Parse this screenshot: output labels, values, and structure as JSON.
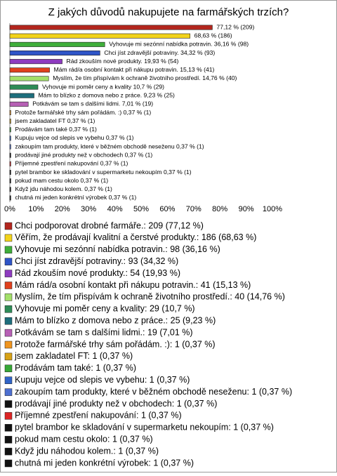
{
  "chart_data": {
    "type": "bar",
    "orientation": "horizontal",
    "title": "Z jakých důvodů nakupujete na farmářských trzích?",
    "values": [
      77.12,
      68.63,
      36.16,
      34.32,
      19.93,
      15.13,
      14.76,
      10.7,
      9.23,
      7.01,
      0.37,
      0.37,
      0.37,
      0.37,
      0.37,
      0.37,
      0.37,
      0.37,
      0.37,
      0.37,
      0.37
    ],
    "value_labels": [
      "77,12 % (209)",
      "68,63 % (186)",
      "Vyhovuje mi sezónní nabídka potravin. 36,16 % (98)",
      "Chci jíst zdravější potraviny. 34,32 % (93)",
      "Rád zkouším nové produkty. 19,93 % (54)",
      "Mám rád/a osobní kontakt při nákupu potravin. 15,13 % (41)",
      "Myslím, že tím přispívám k ochraně životního prostředí. 14,76 % (40)",
      "Vyhovuje mi poměr ceny a kvality 10,7 % (29)",
      "Mám to blízko z domova nebo z práce. 9,23 % (25)",
      "Potkávám se tam s dalšími lidmi. 7,01 % (19)",
      "Protože farmářské trhy sám pořádám. :) 0,37 % (1)",
      "jsem zakladatel FT 0,37 % (1)",
      "Prodávám tam také 0,37 % (1)",
      "Kupuju vejce od slepis ve vybehu 0,37 % (1)",
      "zakoupím tam produkty, které v běžném obchodě neseženu 0,37 % (1)",
      "prodávají jiné produkty než v obchodech 0,37 % (1)",
      "Příjemné zpestření nakupování 0,37 % (1)",
      "pytel brambor ke skladování v supermarketu nekoupím 0,37 % (1)",
      "pokud mam cestu okolo 0,37 % (1)",
      "Když jdu náhodou kolem. 0,37 % (1)",
      "chutná mi jeden konkrétní výrobek 0,37 % (1)"
    ],
    "legend": [
      "Chci podporovat drobné farmáře.: 209 (77,12 %)",
      "Věřím, že prodávají kvalitní a čerstvé produkty.: 186 (68,63 %)",
      "Vyhovuje mi sezónní nabídka potravin.: 98 (36,16 %)",
      "Chci jíst zdravější potraviny.: 93 (34,32 %)",
      "Rád zkouším nové produkty.: 54 (19,93 %)",
      "Mám rád/a osobní kontakt při nákupu potravin.: 41 (15,13 %)",
      "Myslím, že tím přispívám k ochraně životního prostředí.: 40 (14,76 %)",
      "Vyhovuje mi poměr ceny a kvality: 29 (10,7 %)",
      "Mám to blízko z domova nebo z práce.: 25 (9,23 %)",
      "Potkávám se tam s dalšími lidmi.: 19 (7,01 %)",
      "Protože farmářské trhy sám pořádám. :): 1 (0,37 %)",
      "jsem zakladatel FT: 1 (0,37 %)",
      "Prodávám tam také: 1 (0,37 %)",
      "Kupuju vejce od slepis ve vybehu: 1 (0,37 %)",
      "zakoupím tam produkty, které v běžném obchodě neseženu: 1 (0,37 %)",
      "prodávají jiné produkty než v obchodech: 1 (0,37 %)",
      "Příjemné zpestření nakupování: 1 (0,37 %)",
      "pytel brambor ke skladování v supermarketu nekoupím: 1 (0,37 %)",
      "pokud mam cestu okolo: 1 (0,37 %)",
      "Když jdu náhodou kolem.: 1 (0,37 %)",
      "chutná mi jeden konkrétní výrobek: 1 (0,37 %)"
    ],
    "colors": [
      "#b3261e",
      "#f2d31a",
      "#3fae3a",
      "#2f55c8",
      "#8e3bc0",
      "#e0401d",
      "#a3e06a",
      "#2e8b57",
      "#1d6e7c",
      "#b760b5",
      "#f0951e",
      "#d8a216",
      "#36a836",
      "#3064c8",
      "#4d6fd0",
      "#111111",
      "#dd2424",
      "#111111",
      "#111111",
      "#111111",
      "#111111"
    ],
    "xlim": [
      0,
      100
    ],
    "xticks": [
      {
        "value": 0,
        "label": "0%"
      },
      {
        "value": 10,
        "label": "10%"
      },
      {
        "value": 20,
        "label": "20%"
      },
      {
        "value": 30,
        "label": "30%"
      },
      {
        "value": 40,
        "label": "40%"
      },
      {
        "value": 50,
        "label": "50%"
      },
      {
        "value": 60,
        "label": "60%"
      },
      {
        "value": 70,
        "label": "70%"
      },
      {
        "value": 80,
        "label": "80%"
      },
      {
        "value": 90,
        "label": "90%"
      },
      {
        "value": 100,
        "label": "100%"
      }
    ],
    "grid": false
  }
}
